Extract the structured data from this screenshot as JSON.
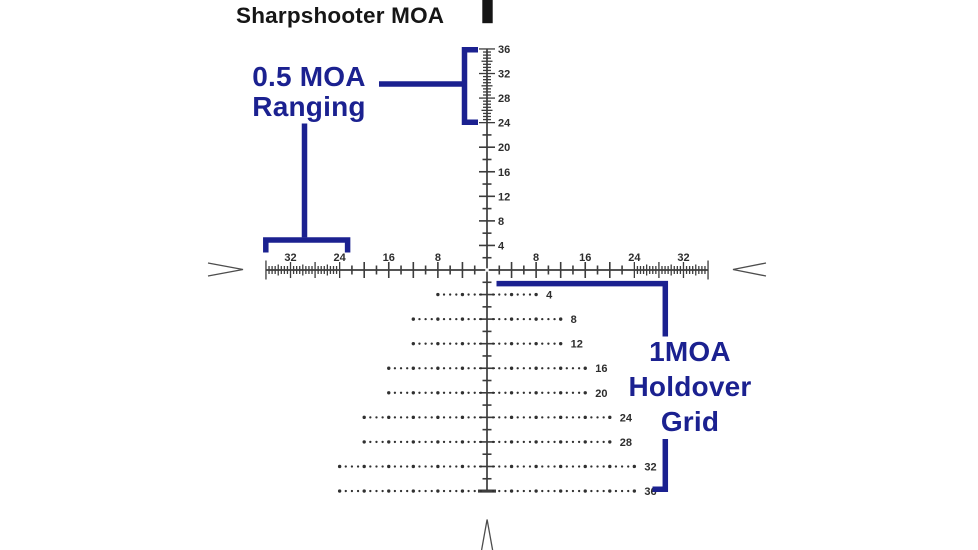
{
  "title": "Sharpshooter MOA",
  "colors": {
    "annotation_blue": "#1b2190",
    "reticle_line": "#3c3c3c",
    "tick_label": "#2d2d2d",
    "dot": "#303030",
    "edge_marker": "#4d4d4d",
    "post_black": "#151515",
    "background": "#ffffff"
  },
  "annotations": {
    "ranging": {
      "line1": "0.5 MOA",
      "line2": "Ranging"
    },
    "holdover": {
      "line1": "1MOA",
      "line2": "Holdover",
      "line3": "Grid"
    }
  },
  "reticle": {
    "units": "MOA",
    "vertical_axis": {
      "extent_moa": 36,
      "minor_step_moa": 2,
      "labeled_step_moa": 4,
      "fine_step_moa": 0.5,
      "fine_range_moa": [
        24,
        36
      ],
      "label_values": [
        4,
        8,
        12,
        16,
        20,
        24,
        28,
        32,
        36
      ]
    },
    "horizontal_axis": {
      "extent_moa": 36,
      "minor_step_moa": 2,
      "fine_step_moa": 0.5,
      "fine_range_moa": [
        24,
        36
      ],
      "label_values_left": [
        32,
        24,
        16,
        8
      ],
      "label_values_right": [
        8,
        16,
        24,
        32
      ]
    },
    "holdover_grid": {
      "dot_step_moa": 1,
      "big_dot_every_moa": 4,
      "rows": [
        {
          "moa": 4,
          "half_width_moa": 8
        },
        {
          "moa": 8,
          "half_width_moa": 12
        },
        {
          "moa": 12,
          "half_width_moa": 12
        },
        {
          "moa": 16,
          "half_width_moa": 16
        },
        {
          "moa": 20,
          "half_width_moa": 16
        },
        {
          "moa": 24,
          "half_width_moa": 20
        },
        {
          "moa": 28,
          "half_width_moa": 20
        },
        {
          "moa": 32,
          "half_width_moa": 24
        },
        {
          "moa": 36,
          "half_width_moa": 24
        }
      ]
    }
  }
}
